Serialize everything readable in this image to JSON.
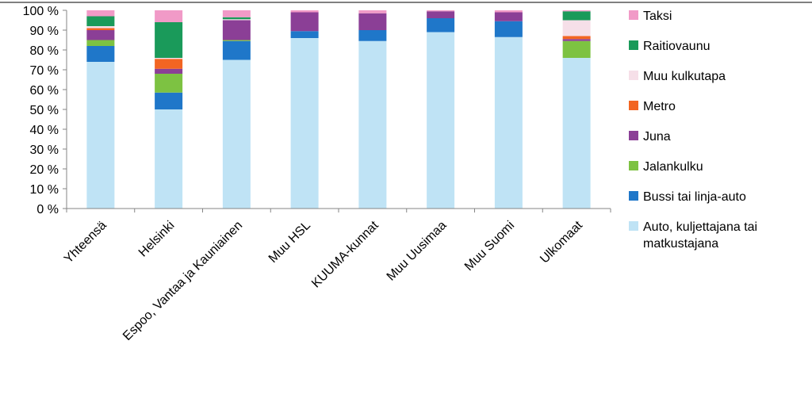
{
  "chart_data": {
    "type": "bar",
    "stacked": true,
    "categories": [
      "Yhteensä",
      "Helsinki",
      "Espoo, Vantaa ja Kauniainen",
      "Muu HSL",
      "KUUMA-kunnat",
      "Muu Uusimaa",
      "Muu Suomi",
      "Ulkomaat"
    ],
    "y_ticks": [
      "0 %",
      "10 %",
      "20 %",
      "30 %",
      "40 %",
      "50 %",
      "60 %",
      "70 %",
      "80 %",
      "90 %",
      "100 %"
    ],
    "ylim": [
      0,
      100
    ],
    "legend_position": "right",
    "series": [
      {
        "name": "Auto, kuljettajana tai matkustajana",
        "legend_lines": [
          "Auto, kuljettajana tai",
          "matkustajana"
        ],
        "color": "#bfe3f5",
        "values": [
          74,
          50,
          75,
          86,
          84.5,
          89,
          86.5,
          76
        ]
      },
      {
        "name": "Bussi tai linja-auto",
        "legend_lines": [
          "Bussi tai linja-auto"
        ],
        "color": "#1f77c9",
        "values": [
          8,
          8.5,
          9.5,
          3.5,
          5.5,
          7,
          8,
          0
        ]
      },
      {
        "name": "Jalankulku",
        "legend_lines": [
          "Jalankulku"
        ],
        "color": "#7dc242",
        "values": [
          3,
          9.5,
          0.5,
          0,
          0,
          0,
          0,
          8.5
        ]
      },
      {
        "name": "Juna",
        "legend_lines": [
          "Juna"
        ],
        "color": "#8b3f96",
        "values": [
          5,
          2.5,
          10,
          9.5,
          8.5,
          3.5,
          4.5,
          1
        ]
      },
      {
        "name": "Metro",
        "legend_lines": [
          "Metro"
        ],
        "color": "#f26522",
        "values": [
          1,
          5,
          0,
          0,
          0,
          0,
          0,
          1.5
        ]
      },
      {
        "name": "Muu kulkutapa",
        "legend_lines": [
          "Muu kulkutapa"
        ],
        "color": "#f6dfe8",
        "values": [
          1,
          0.5,
          0.5,
          0,
          0,
          0,
          0,
          8
        ]
      },
      {
        "name": "Raitiovaunu",
        "legend_lines": [
          "Raitiovaunu"
        ],
        "color": "#1a9a5a",
        "values": [
          5,
          18,
          1,
          0,
          0,
          0,
          0,
          4.5
        ]
      },
      {
        "name": "Taksi",
        "legend_lines": [
          "Taksi"
        ],
        "color": "#f19ac7",
        "values": [
          3,
          6,
          3.5,
          1,
          1.5,
          0.5,
          1,
          0.5
        ]
      }
    ]
  }
}
